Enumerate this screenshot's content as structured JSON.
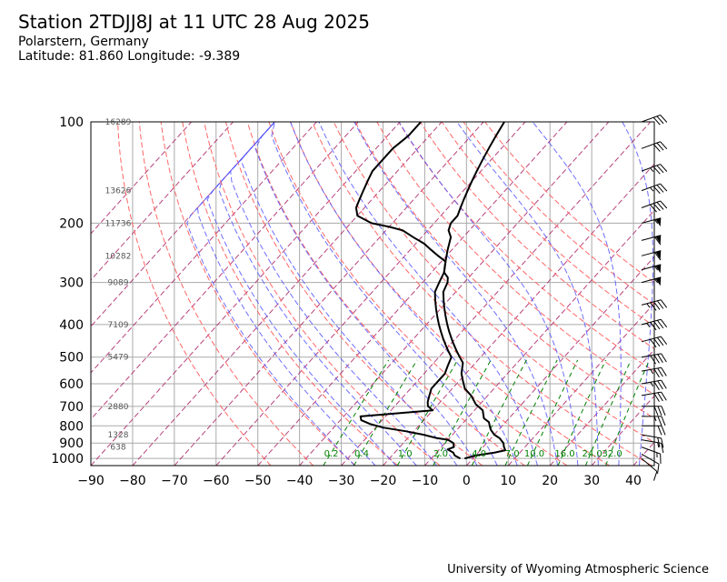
{
  "header": {
    "title": "Station 2TDJJ8J at 11 UTC 28 Aug 2025",
    "location": "Polarstern, Germany",
    "coords": "Latitude: 81.860 Longitude: -9.389"
  },
  "footer": {
    "credit": "University of Wyoming Atmospheric Science"
  },
  "colors": {
    "dry_adiabat": "#ff6666",
    "moist_adiabat": "#5555ff",
    "mixing_ratio": "#008000",
    "isotherm": "#aa2266",
    "profile": "#000000",
    "grid": "#aaaaaa"
  },
  "chart_data": {
    "type": "line",
    "title": "",
    "xlabel": "",
    "ylabel": "",
    "x_ticks": [
      -90,
      -80,
      -70,
      -60,
      -50,
      -40,
      -30,
      -20,
      -10,
      0,
      10,
      20,
      30,
      40
    ],
    "y_ticks": [
      100,
      200,
      300,
      400,
      500,
      600,
      700,
      800,
      900,
      1000
    ],
    "xlim": [
      -90,
      45
    ],
    "ylim": [
      1050,
      100
    ],
    "y_scale": "log",
    "grid": true,
    "height_labels": [
      {
        "p": 100,
        "label": "16289"
      },
      {
        "p": 160,
        "label": "13626"
      },
      {
        "p": 200,
        "label": "11736"
      },
      {
        "p": 250,
        "label": "10282"
      },
      {
        "p": 300,
        "label": "9089"
      },
      {
        "p": 400,
        "label": "7109"
      },
      {
        "p": 500,
        "label": "5479"
      },
      {
        "p": 700,
        "label": "2880"
      },
      {
        "p": 850,
        "label": "1328"
      },
      {
        "p": 925,
        "label": "638"
      }
    ],
    "mixing_ratio_labels": [
      "0.2",
      "0.4",
      "1.0",
      "2.0",
      "4.0",
      "7.0",
      "10.0",
      "16.0",
      "24.0",
      "32.0"
    ],
    "series": [
      {
        "style": "solid",
        "points": [
          [
            1000,
            -2
          ],
          [
            980,
            0
          ],
          [
            960,
            4
          ],
          [
            945,
            6
          ],
          [
            925,
            5
          ],
          [
            900,
            4
          ],
          [
            870,
            2
          ],
          [
            850,
            0
          ],
          [
            820,
            -2
          ],
          [
            800,
            -3
          ],
          [
            780,
            -4
          ],
          [
            760,
            -6
          ],
          [
            720,
            -8
          ],
          [
            690,
            -11
          ],
          [
            650,
            -14
          ],
          [
            620,
            -17
          ],
          [
            590,
            -19
          ],
          [
            560,
            -21
          ],
          [
            520,
            -23
          ],
          [
            500,
            -25
          ],
          [
            480,
            -27
          ],
          [
            450,
            -30
          ],
          [
            420,
            -33
          ],
          [
            400,
            -35
          ],
          [
            380,
            -37
          ],
          [
            360,
            -39
          ],
          [
            340,
            -41
          ],
          [
            320,
            -43
          ],
          [
            300,
            -44
          ],
          [
            290,
            -45
          ],
          [
            280,
            -47
          ],
          [
            270,
            -48
          ],
          [
            260,
            -49
          ],
          [
            240,
            -51
          ],
          [
            220,
            -53
          ],
          [
            210,
            -55
          ],
          [
            200,
            -56
          ],
          [
            190,
            -56
          ],
          [
            180,
            -57
          ],
          [
            170,
            -58
          ],
          [
            160,
            -59
          ],
          [
            150,
            -60
          ],
          [
            140,
            -61
          ],
          [
            130,
            -62
          ],
          [
            120,
            -63
          ],
          [
            110,
            -64
          ],
          [
            100,
            -65
          ]
        ]
      },
      {
        "style": "solid",
        "points": [
          [
            1000,
            -3
          ],
          [
            980,
            -5
          ],
          [
            960,
            -6
          ],
          [
            940,
            -8
          ],
          [
            925,
            -7
          ],
          [
            900,
            -8
          ],
          [
            880,
            -10
          ],
          [
            870,
            -13
          ],
          [
            850,
            -17
          ],
          [
            830,
            -22
          ],
          [
            810,
            -28
          ],
          [
            790,
            -32
          ],
          [
            770,
            -35
          ],
          [
            750,
            -36
          ],
          [
            720,
            -20
          ],
          [
            700,
            -22
          ],
          [
            680,
            -23
          ],
          [
            650,
            -24
          ],
          [
            620,
            -25
          ],
          [
            590,
            -25
          ],
          [
            560,
            -25
          ],
          [
            530,
            -26
          ],
          [
            500,
            -27
          ],
          [
            480,
            -29
          ],
          [
            460,
            -31
          ],
          [
            440,
            -33
          ],
          [
            420,
            -35
          ],
          [
            400,
            -37
          ],
          [
            380,
            -39
          ],
          [
            360,
            -41
          ],
          [
            340,
            -43
          ],
          [
            320,
            -45
          ],
          [
            300,
            -46
          ],
          [
            280,
            -47
          ],
          [
            260,
            -49
          ],
          [
            250,
            -52
          ],
          [
            240,
            -55
          ],
          [
            230,
            -58
          ],
          [
            220,
            -62
          ],
          [
            210,
            -66
          ],
          [
            205,
            -70
          ],
          [
            200,
            -75
          ],
          [
            190,
            -80
          ],
          [
            180,
            -82
          ],
          [
            170,
            -83
          ],
          [
            160,
            -84
          ],
          [
            150,
            -85
          ],
          [
            140,
            -86
          ],
          [
            130,
            -86
          ],
          [
            120,
            -86
          ],
          [
            110,
            -85
          ],
          [
            100,
            -85
          ]
        ]
      }
    ],
    "wind_barbs": [
      {
        "p": 1000,
        "speed_kt": 10,
        "dir": 310
      },
      {
        "p": 970,
        "speed_kt": 10,
        "dir": 300
      },
      {
        "p": 925,
        "speed_kt": 15,
        "dir": 290
      },
      {
        "p": 880,
        "speed_kt": 15,
        "dir": 280
      },
      {
        "p": 850,
        "speed_kt": 20,
        "dir": 280
      },
      {
        "p": 800,
        "speed_kt": 20,
        "dir": 270
      },
      {
        "p": 750,
        "speed_kt": 25,
        "dir": 270
      },
      {
        "p": 700,
        "speed_kt": 30,
        "dir": 270
      },
      {
        "p": 650,
        "speed_kt": 30,
        "dir": 260
      },
      {
        "p": 600,
        "speed_kt": 35,
        "dir": 260
      },
      {
        "p": 550,
        "speed_kt": 35,
        "dir": 260
      },
      {
        "p": 500,
        "speed_kt": 40,
        "dir": 260
      },
      {
        "p": 450,
        "speed_kt": 40,
        "dir": 255
      },
      {
        "p": 400,
        "speed_kt": 45,
        "dir": 255
      },
      {
        "p": 350,
        "speed_kt": 45,
        "dir": 255
      },
      {
        "p": 300,
        "speed_kt": 55,
        "dir": 255
      },
      {
        "p": 275,
        "speed_kt": 55,
        "dir": 255
      },
      {
        "p": 250,
        "speed_kt": 60,
        "dir": 255
      },
      {
        "p": 225,
        "speed_kt": 60,
        "dir": 255
      },
      {
        "p": 200,
        "speed_kt": 55,
        "dir": 255
      },
      {
        "p": 180,
        "speed_kt": 40,
        "dir": 250
      },
      {
        "p": 160,
        "speed_kt": 35,
        "dir": 250
      },
      {
        "p": 140,
        "speed_kt": 35,
        "dir": 250
      },
      {
        "p": 120,
        "speed_kt": 30,
        "dir": 250
      },
      {
        "p": 100,
        "speed_kt": 30,
        "dir": 250
      }
    ]
  }
}
